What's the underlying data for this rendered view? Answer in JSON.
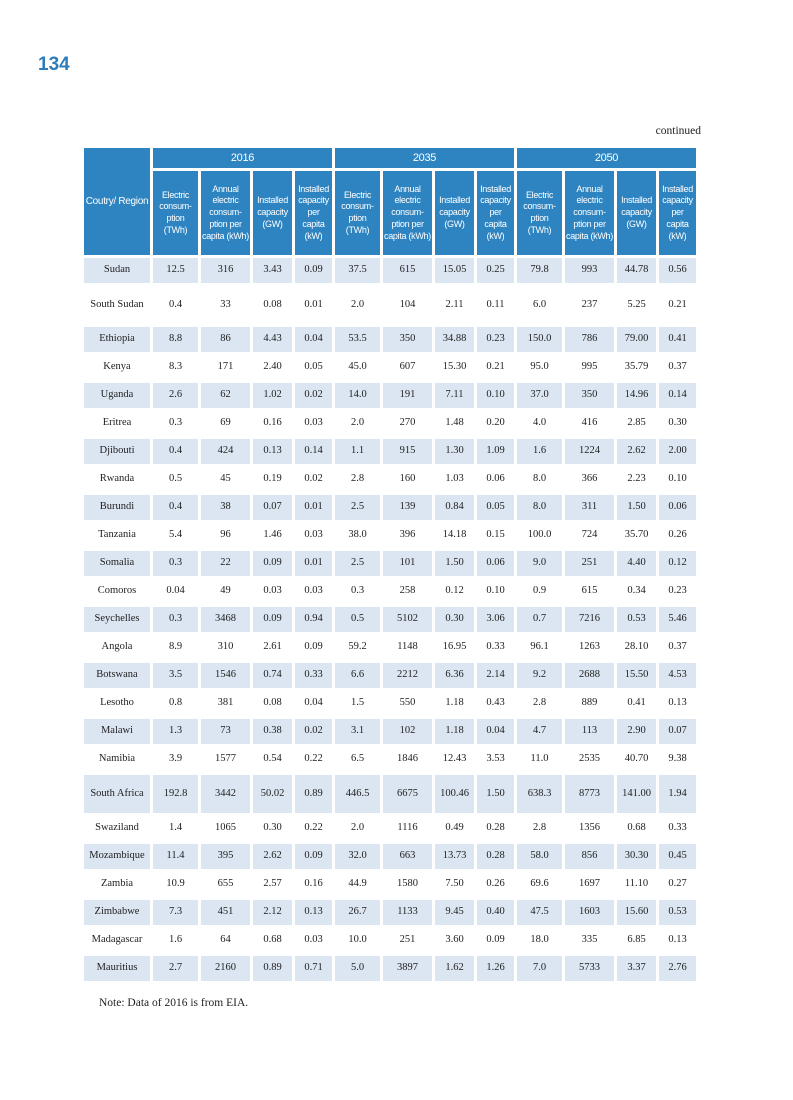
{
  "page": {
    "number": "134",
    "continued_label": "continued",
    "note": "Note: Data of 2016 is from EIA."
  },
  "colors": {
    "header_blue": "#2e84c1",
    "band_blue": "#dce6f2",
    "page_number_blue": "#2e7cba"
  },
  "table": {
    "corner_header": "Coutry/ Region",
    "year_groups": [
      {
        "year": "2016"
      },
      {
        "year": "2035"
      },
      {
        "year": "2050"
      }
    ],
    "sub_headers": [
      "Electric consum- ption (TWh)",
      "Annual electric consum- ption per capita (kWh)",
      "Installed capacity (GW)",
      "Installed capacity per capita (kW)"
    ],
    "rows": [
      {
        "country": "Sudan",
        "values": [
          "12.5",
          "316",
          "3.43",
          "0.09",
          "37.5",
          "615",
          "15.05",
          "0.25",
          "79.8",
          "993",
          "44.78",
          "0.56"
        ]
      },
      {
        "country": "South Sudan",
        "values": [
          "0.4",
          "33",
          "0.08",
          "0.01",
          "2.0",
          "104",
          "2.11",
          "0.11",
          "6.0",
          "237",
          "5.25",
          "0.21"
        ]
      },
      {
        "country": "Ethiopia",
        "values": [
          "8.8",
          "86",
          "4.43",
          "0.04",
          "53.5",
          "350",
          "34.88",
          "0.23",
          "150.0",
          "786",
          "79.00",
          "0.41"
        ]
      },
      {
        "country": "Kenya",
        "values": [
          "8.3",
          "171",
          "2.40",
          "0.05",
          "45.0",
          "607",
          "15.30",
          "0.21",
          "95.0",
          "995",
          "35.79",
          "0.37"
        ]
      },
      {
        "country": "Uganda",
        "values": [
          "2.6",
          "62",
          "1.02",
          "0.02",
          "14.0",
          "191",
          "7.11",
          "0.10",
          "37.0",
          "350",
          "14.96",
          "0.14"
        ]
      },
      {
        "country": "Eritrea",
        "values": [
          "0.3",
          "69",
          "0.16",
          "0.03",
          "2.0",
          "270",
          "1.48",
          "0.20",
          "4.0",
          "416",
          "2.85",
          "0.30"
        ]
      },
      {
        "country": "Djibouti",
        "values": [
          "0.4",
          "424",
          "0.13",
          "0.14",
          "1.1",
          "915",
          "1.30",
          "1.09",
          "1.6",
          "1224",
          "2.62",
          "2.00"
        ]
      },
      {
        "country": "Rwanda",
        "values": [
          "0.5",
          "45",
          "0.19",
          "0.02",
          "2.8",
          "160",
          "1.03",
          "0.06",
          "8.0",
          "366",
          "2.23",
          "0.10"
        ]
      },
      {
        "country": "Burundi",
        "values": [
          "0.4",
          "38",
          "0.07",
          "0.01",
          "2.5",
          "139",
          "0.84",
          "0.05",
          "8.0",
          "311",
          "1.50",
          "0.06"
        ]
      },
      {
        "country": "Tanzania",
        "values": [
          "5.4",
          "96",
          "1.46",
          "0.03",
          "38.0",
          "396",
          "14.18",
          "0.15",
          "100.0",
          "724",
          "35.70",
          "0.26"
        ]
      },
      {
        "country": "Somalia",
        "values": [
          "0.3",
          "22",
          "0.09",
          "0.01",
          "2.5",
          "101",
          "1.50",
          "0.06",
          "9.0",
          "251",
          "4.40",
          "0.12"
        ]
      },
      {
        "country": "Comoros",
        "values": [
          "0.04",
          "49",
          "0.03",
          "0.03",
          "0.3",
          "258",
          "0.12",
          "0.10",
          "0.9",
          "615",
          "0.34",
          "0.23"
        ]
      },
      {
        "country": "Seychelles",
        "values": [
          "0.3",
          "3468",
          "0.09",
          "0.94",
          "0.5",
          "5102",
          "0.30",
          "3.06",
          "0.7",
          "7216",
          "0.53",
          "5.46"
        ]
      },
      {
        "country": "Angola",
        "values": [
          "8.9",
          "310",
          "2.61",
          "0.09",
          "59.2",
          "1148",
          "16.95",
          "0.33",
          "96.1",
          "1263",
          "28.10",
          "0.37"
        ]
      },
      {
        "country": "Botswana",
        "values": [
          "3.5",
          "1546",
          "0.74",
          "0.33",
          "6.6",
          "2212",
          "6.36",
          "2.14",
          "9.2",
          "2688",
          "15.50",
          "4.53"
        ]
      },
      {
        "country": "Lesotho",
        "values": [
          "0.8",
          "381",
          "0.08",
          "0.04",
          "1.5",
          "550",
          "1.18",
          "0.43",
          "2.8",
          "889",
          "0.41",
          "0.13"
        ]
      },
      {
        "country": "Malawi",
        "values": [
          "1.3",
          "73",
          "0.38",
          "0.02",
          "3.1",
          "102",
          "1.18",
          "0.04",
          "4.7",
          "113",
          "2.90",
          "0.07"
        ]
      },
      {
        "country": "Namibia",
        "values": [
          "3.9",
          "1577",
          "0.54",
          "0.22",
          "6.5",
          "1846",
          "12.43",
          "3.53",
          "11.0",
          "2535",
          "40.70",
          "9.38"
        ]
      },
      {
        "country": "South Africa",
        "values": [
          "192.8",
          "3442",
          "50.02",
          "0.89",
          "446.5",
          "6675",
          "100.46",
          "1.50",
          "638.3",
          "8773",
          "141.00",
          "1.94"
        ]
      },
      {
        "country": "Swaziland",
        "values": [
          "1.4",
          "1065",
          "0.30",
          "0.22",
          "2.0",
          "1116",
          "0.49",
          "0.28",
          "2.8",
          "1356",
          "0.68",
          "0.33"
        ]
      },
      {
        "country": "Mozambique",
        "values": [
          "11.4",
          "395",
          "2.62",
          "0.09",
          "32.0",
          "663",
          "13.73",
          "0.28",
          "58.0",
          "856",
          "30.30",
          "0.45"
        ]
      },
      {
        "country": "Zambia",
        "values": [
          "10.9",
          "655",
          "2.57",
          "0.16",
          "44.9",
          "1580",
          "7.50",
          "0.26",
          "69.6",
          "1697",
          "11.10",
          "0.27"
        ]
      },
      {
        "country": "Zimbabwe",
        "values": [
          "7.3",
          "451",
          "2.12",
          "0.13",
          "26.7",
          "1133",
          "9.45",
          "0.40",
          "47.5",
          "1603",
          "15.60",
          "0.53"
        ]
      },
      {
        "country": "Madagascar",
        "values": [
          "1.6",
          "64",
          "0.68",
          "0.03",
          "10.0",
          "251",
          "3.60",
          "0.09",
          "18.0",
          "335",
          "6.85",
          "0.13"
        ]
      },
      {
        "country": "Mauritius",
        "values": [
          "2.7",
          "2160",
          "0.89",
          "0.71",
          "5.0",
          "3897",
          "1.62",
          "1.26",
          "7.0",
          "5733",
          "3.37",
          "2.76"
        ]
      }
    ]
  }
}
